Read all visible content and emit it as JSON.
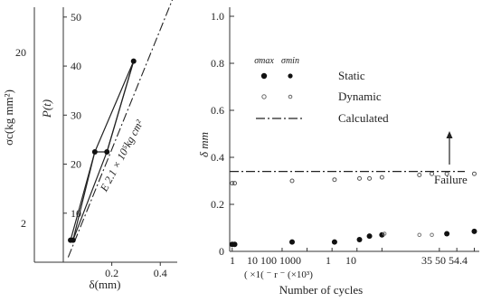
{
  "chart_data": [
    {
      "type": "line",
      "xlabel": "δ(mm)",
      "ylabel_outer": "σc(kg mm²)",
      "ylabel_inner": "P(t)",
      "x_ticks": [
        "0.2",
        "0.4"
      ],
      "x_tick_values": [
        0.2,
        0.4
      ],
      "y_outer_ticks": [
        "20",
        "2"
      ],
      "y_inner_ticks": [
        "50",
        "40",
        "30",
        "20",
        "10"
      ],
      "y_inner_tick_values": [
        50,
        40,
        30,
        20,
        10
      ],
      "xlim": [
        0,
        0.47
      ],
      "ylim": [
        0,
        52
      ],
      "annotation": "E 2.1 × 10⁵kg cm²",
      "series": [
        {
          "x": [
            0.03,
            0.04,
            0.13,
            0.18,
            0.29
          ],
          "y": [
            4.5,
            4.5,
            22.5,
            22.5,
            41
          ]
        },
        {
          "x": [
            0.03,
            0.13,
            0.29
          ],
          "y": [
            4.5,
            22.5,
            41
          ]
        },
        {
          "x": [
            0.04,
            0.18,
            0.29
          ],
          "y": [
            4.5,
            22.5,
            41
          ]
        }
      ],
      "points": {
        "x": [
          0.03,
          0.04,
          0.13,
          0.18,
          0.29
        ],
        "y": [
          4.5,
          4.5,
          22.5,
          22.5,
          41
        ]
      },
      "calculated_line": {
        "x": [
          0.02,
          0.47
        ],
        "y": [
          1,
          56
        ]
      }
    },
    {
      "type": "scatter",
      "xlabel": "Number of cycles",
      "x_sublabel": "( ×1( ⁻ r ⁻ (×10³)",
      "ylabel": "δ mm",
      "x_ticks": [
        "1",
        "10",
        "100",
        "1000",
        "1",
        "10",
        "35",
        "50",
        "54.4"
      ],
      "x_tick_positions": [
        1,
        3,
        4,
        5,
        6,
        7,
        9.3,
        10,
        10.7
      ],
      "x_tick_display": "1 10 100 1000 1 10 35 50 54.4",
      "x_tick_display_1": "1",
      "x_tick_display_2": "10 100 1000",
      "x_tick_display_3": "1",
      "x_tick_display_4": "10",
      "x_tick_display_5": "35 50 54.4",
      "y_ticks": [
        "0",
        "0.2",
        "0.4",
        "0.6",
        "0.8",
        "1.0"
      ],
      "y_tick_values": [
        0,
        0.2,
        0.4,
        0.6,
        0.8,
        1.0
      ],
      "ylim": [
        0,
        1.0
      ],
      "xlim": [
        0.9,
        10.9
      ],
      "legend": {
        "header_1": "σmax",
        "header_2": "σmin",
        "static": "Static",
        "dynamic": "Dynamic",
        "calculated": "Calculated"
      },
      "annotation": "Failure",
      "calculated_value": 0.34,
      "series": [
        {
          "name": "Static",
          "x": [
            1,
            1.1,
            3.4,
            5.1,
            6.1,
            6.5,
            7.0,
            9.6,
            10.7
          ],
          "y": [
            0.03,
            0.03,
            0.04,
            0.04,
            0.05,
            0.065,
            0.07,
            0.075,
            0.085
          ]
        },
        {
          "name": "Dynamic",
          "x": [
            1,
            1.1,
            3.4,
            5.1,
            6.1,
            6.5,
            7.0,
            8.5,
            9.0,
            9.6,
            10.7
          ],
          "y": [
            0.29,
            0.29,
            0.3,
            0.305,
            0.31,
            0.31,
            0.315,
            0.325,
            0.33,
            0.33,
            0.33
          ]
        }
      ],
      "dynamic_low": {
        "x": [
          7.1,
          8.5,
          9.0
        ],
        "y": [
          0.075,
          0.07,
          0.07
        ]
      }
    }
  ]
}
